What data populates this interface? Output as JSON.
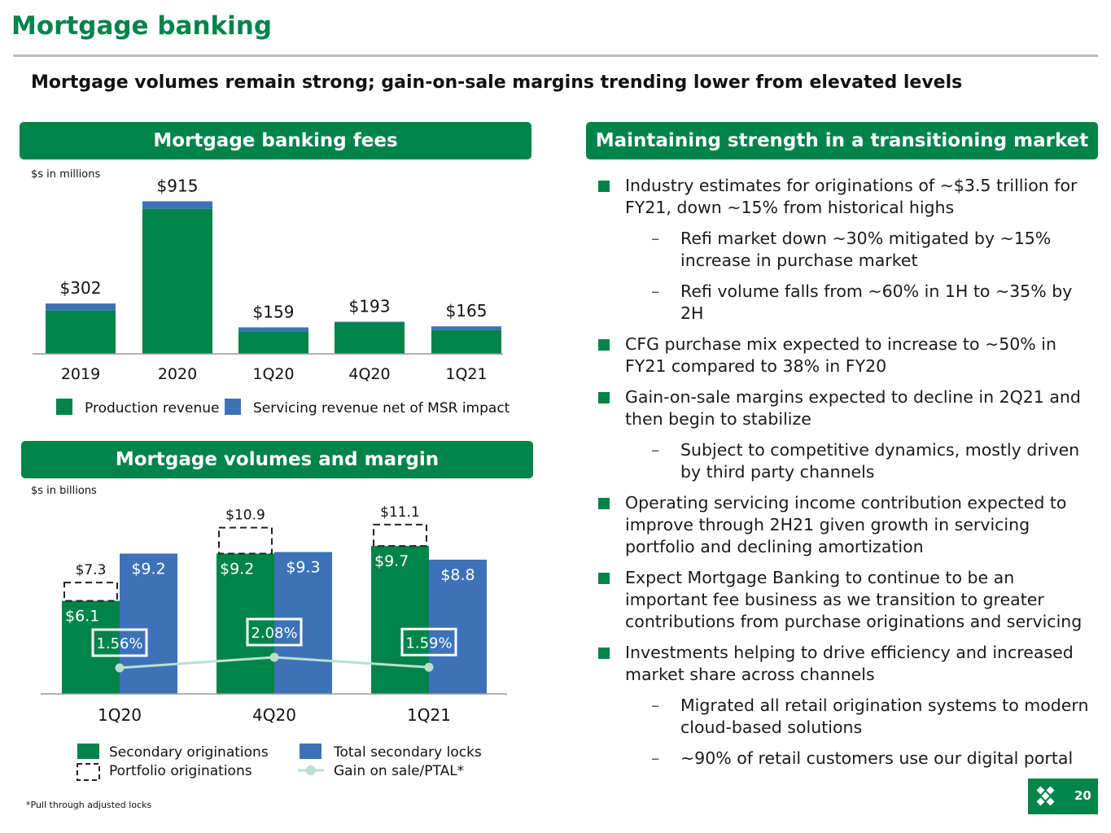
{
  "page": {
    "title": "Mortgage banking",
    "subtitle": "Mortgage volumes remain strong; gain-on-sale margins trending lower from elevated levels",
    "footnote": "*Pull through adjusted locks",
    "page_number": "20"
  },
  "colors": {
    "brand_green": "#00844a",
    "blue": "#3d72b8",
    "light_green": "#b9dfcf",
    "gray_rule": "#bdbdbd"
  },
  "fees_panel": {
    "header": "Mortgage banking fees",
    "units": "$s in millions"
  },
  "volumes_panel": {
    "header": "Mortgage volumes and margin",
    "units": "$s in billions"
  },
  "right_panel": {
    "header": "Maintaining strength in a transitioning market",
    "bullets": [
      {
        "level": 1,
        "text": "Industry estimates for originations of ~$3.5 trillion for FY21, down ~15% from historical highs"
      },
      {
        "level": 2,
        "text": "Refi market down ~30% mitigated by ~15% increase in purchase market"
      },
      {
        "level": 2,
        "text": "Refi volume falls from ~60% in 1H to ~35% by 2H"
      },
      {
        "level": 1,
        "text": "CFG purchase mix expected to increase to ~50% in FY21 compared to 38% in FY20"
      },
      {
        "level": 1,
        "text": "Gain-on-sale margins expected to decline in 2Q21 and then begin to stabilize"
      },
      {
        "level": 2,
        "text": "Subject to competitive dynamics, mostly driven by third party channels"
      },
      {
        "level": 1,
        "text": "Operating servicing income contribution expected to improve through 2H21 given growth in servicing portfolio and declining amortization"
      },
      {
        "level": 1,
        "text": "Expect Mortgage Banking to continue to be an important fee business as we transition to greater contributions from purchase originations and servicing"
      },
      {
        "level": 1,
        "text": "Investments helping to drive efficiency and increased market share across channels"
      },
      {
        "level": 2,
        "text": "Migrated all retail origination systems to modern cloud-based solutions"
      },
      {
        "level": 2,
        "text": "~90% of retail customers use our digital portal"
      }
    ],
    "dash_glyph": "–"
  },
  "chart_data": [
    {
      "type": "bar",
      "stacked": true,
      "categories": [
        "2019",
        "2020",
        "1Q20",
        "4Q20",
        "1Q21"
      ],
      "series": [
        {
          "name": "Production revenue",
          "color": "#00844a",
          "values": [
            260,
            870,
            135,
            188,
            143
          ]
        },
        {
          "name": "Servicing revenue net of MSR impact",
          "color": "#3d72b8",
          "values": [
            42,
            45,
            24,
            5,
            22
          ]
        }
      ],
      "total_labels": [
        "$302",
        "$915",
        "$159",
        "$193",
        "$165"
      ],
      "ylim": [
        0,
        1000
      ],
      "xlabel": "",
      "ylabel": "",
      "legend": "bottom"
    },
    {
      "type": "bar",
      "categories": [
        "1Q20",
        "4Q20",
        "1Q21"
      ],
      "series": [
        {
          "name": "Secondary originations",
          "color": "#00844a",
          "values": [
            6.1,
            9.2,
            9.7
          ],
          "labels": [
            "$6.1",
            "$9.2",
            "$9.7"
          ]
        },
        {
          "name": "Portfolio originations",
          "style": "dashed",
          "values": [
            1.2,
            1.7,
            1.4
          ],
          "total_labels": [
            "$7.3",
            "$10.9",
            "$11.1"
          ]
        },
        {
          "name": "Total secondary locks",
          "color": "#3d72b8",
          "values": [
            9.2,
            9.3,
            8.8
          ],
          "labels": [
            "$9.2",
            "$9.3",
            "$8.8"
          ]
        },
        {
          "name": "Gain on sale/PTAL*",
          "type": "line",
          "color": "#b9dfcf",
          "values": [
            1.56,
            2.08,
            1.59
          ],
          "labels": [
            "1.56%",
            "2.08%",
            "1.59%"
          ]
        }
      ],
      "ylim": [
        0,
        12
      ],
      "xlabel": "",
      "ylabel": "",
      "legend": "bottom"
    }
  ]
}
